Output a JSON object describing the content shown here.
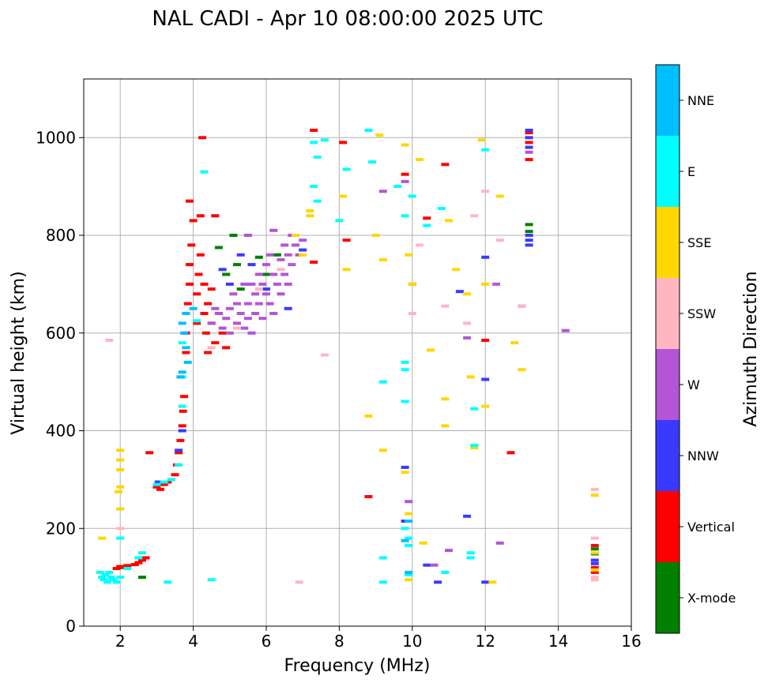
{
  "chart_data": {
    "type": "scatter",
    "title": "NAL CADI - Apr 10 08:00:00 2025 UTC",
    "xlabel": "Frequency (MHz)",
    "ylabel": "Virtual height (km)",
    "xlim": [
      1.0,
      16.0
    ],
    "ylim": [
      0,
      1120
    ],
    "xticks": [
      2,
      4,
      6,
      8,
      10,
      12,
      14,
      16
    ],
    "yticks": [
      0,
      200,
      400,
      600,
      800,
      1000
    ],
    "grid": true,
    "colorbar": {
      "label": "Azimuth Direction",
      "categories": [
        {
          "name": "X-mode",
          "color": "#008000"
        },
        {
          "name": "Vertical",
          "color": "#ff0000"
        },
        {
          "name": "NNW",
          "color": "#3a3aff"
        },
        {
          "name": "W",
          "color": "#b455d6"
        },
        {
          "name": "SSW",
          "color": "#ffb6c1"
        },
        {
          "name": "SSE",
          "color": "#ffd700"
        },
        {
          "name": "E",
          "color": "#00ffff"
        },
        {
          "name": "NNE",
          "color": "#00bfff"
        }
      ]
    },
    "series": [
      {
        "name": "X-mode",
        "points": [
          [
            2.0,
            120
          ],
          [
            2.6,
            100
          ],
          [
            4.7,
            775
          ],
          [
            4.9,
            720
          ],
          [
            5.1,
            800
          ],
          [
            5.2,
            740
          ],
          [
            5.3,
            690
          ],
          [
            5.8,
            755
          ],
          [
            6.0,
            720
          ],
          [
            6.3,
            760
          ],
          [
            13.2,
            822
          ],
          [
            13.2,
            808
          ],
          [
            15.0,
            158
          ],
          [
            15.0,
            148
          ]
        ]
      },
      {
        "name": "Vertical",
        "points": [
          [
            1.9,
            118
          ],
          [
            2.0,
            122
          ],
          [
            2.2,
            124
          ],
          [
            2.4,
            126
          ],
          [
            2.5,
            130
          ],
          [
            2.6,
            135
          ],
          [
            2.7,
            140
          ],
          [
            3.0,
            285
          ],
          [
            3.1,
            280
          ],
          [
            3.2,
            290
          ],
          [
            3.3,
            295
          ],
          [
            3.4,
            300
          ],
          [
            3.5,
            310
          ],
          [
            3.55,
            330
          ],
          [
            3.6,
            355
          ],
          [
            3.65,
            380
          ],
          [
            3.7,
            410
          ],
          [
            3.72,
            440
          ],
          [
            3.75,
            470
          ],
          [
            3.8,
            560
          ],
          [
            3.8,
            600
          ],
          [
            3.8,
            640
          ],
          [
            3.85,
            660
          ],
          [
            3.9,
            700
          ],
          [
            3.9,
            740
          ],
          [
            3.95,
            780
          ],
          [
            4.0,
            830
          ],
          [
            3.9,
            870
          ],
          [
            4.1,
            620
          ],
          [
            4.1,
            680
          ],
          [
            4.15,
            720
          ],
          [
            4.2,
            760
          ],
          [
            4.2,
            840
          ],
          [
            4.25,
            1000
          ],
          [
            4.3,
            640
          ],
          [
            4.3,
            700
          ],
          [
            4.35,
            600
          ],
          [
            4.4,
            660
          ],
          [
            4.4,
            560
          ],
          [
            4.5,
            690
          ],
          [
            4.5,
            620
          ],
          [
            4.6,
            580
          ],
          [
            4.6,
            840
          ],
          [
            4.7,
            640
          ],
          [
            4.8,
            600
          ],
          [
            4.9,
            570
          ],
          [
            2.8,
            355
          ],
          [
            7.3,
            1015
          ],
          [
            7.3,
            745
          ],
          [
            8.1,
            990
          ],
          [
            8.2,
            790
          ],
          [
            9.8,
            925
          ],
          [
            10.0,
            700
          ],
          [
            10.4,
            835
          ],
          [
            10.9,
            945
          ],
          [
            12.0,
            585
          ],
          [
            12.7,
            355
          ],
          [
            13.2,
            1010
          ],
          [
            13.2,
            990
          ],
          [
            13.2,
            955
          ],
          [
            15.0,
            165
          ],
          [
            15.0,
            120
          ],
          [
            15.0,
            110
          ],
          [
            8.8,
            265
          ]
        ]
      },
      {
        "name": "NNW",
        "points": [
          [
            3.05,
            295
          ],
          [
            3.6,
            360
          ],
          [
            3.7,
            400
          ],
          [
            4.8,
            730
          ],
          [
            5.0,
            700
          ],
          [
            5.3,
            760
          ],
          [
            5.6,
            740
          ],
          [
            6.0,
            690
          ],
          [
            6.6,
            650
          ],
          [
            7.0,
            770
          ],
          [
            9.8,
            325
          ],
          [
            9.8,
            215
          ],
          [
            10.4,
            125
          ],
          [
            11.3,
            685
          ],
          [
            11.5,
            225
          ],
          [
            12.0,
            755
          ],
          [
            12.0,
            505
          ],
          [
            12.0,
            90
          ],
          [
            13.2,
            1015
          ],
          [
            13.2,
            1000
          ],
          [
            13.2,
            980
          ],
          [
            13.2,
            800
          ],
          [
            13.2,
            790
          ],
          [
            13.2,
            780
          ],
          [
            15.0,
            135
          ],
          [
            15.0,
            128
          ],
          [
            10.7,
            90
          ]
        ]
      },
      {
        "name": "W",
        "points": [
          [
            4.5,
            620
          ],
          [
            4.6,
            650
          ],
          [
            4.7,
            640
          ],
          [
            4.8,
            610
          ],
          [
            4.9,
            630
          ],
          [
            5.0,
            650
          ],
          [
            5.0,
            600
          ],
          [
            5.1,
            680
          ],
          [
            5.2,
            620
          ],
          [
            5.2,
            660
          ],
          [
            5.3,
            640
          ],
          [
            5.4,
            700
          ],
          [
            5.4,
            610
          ],
          [
            5.5,
            660
          ],
          [
            5.5,
            630
          ],
          [
            5.6,
            700
          ],
          [
            5.6,
            600
          ],
          [
            5.7,
            680
          ],
          [
            5.7,
            640
          ],
          [
            5.8,
            720
          ],
          [
            5.8,
            660
          ],
          [
            5.9,
            700
          ],
          [
            5.9,
            630
          ],
          [
            6.0,
            740
          ],
          [
            6.0,
            680
          ],
          [
            6.1,
            760
          ],
          [
            6.1,
            660
          ],
          [
            6.2,
            720
          ],
          [
            6.2,
            640
          ],
          [
            6.3,
            700
          ],
          [
            6.4,
            750
          ],
          [
            6.4,
            680
          ],
          [
            6.5,
            780
          ],
          [
            6.5,
            720
          ],
          [
            6.6,
            760
          ],
          [
            6.6,
            700
          ],
          [
            6.7,
            800
          ],
          [
            6.7,
            740
          ],
          [
            6.8,
            780
          ],
          [
            6.9,
            760
          ],
          [
            7.0,
            790
          ],
          [
            6.2,
            810
          ],
          [
            5.5,
            800
          ],
          [
            9.2,
            890
          ],
          [
            9.8,
            910
          ],
          [
            9.9,
            255
          ],
          [
            10.6,
            125
          ],
          [
            11.0,
            155
          ],
          [
            11.5,
            590
          ],
          [
            13.0,
            655
          ],
          [
            14.2,
            605
          ],
          [
            12.3,
            700
          ],
          [
            12.4,
            170
          ],
          [
            13.2,
            970
          ]
        ]
      },
      {
        "name": "SSW",
        "points": [
          [
            1.7,
            585
          ],
          [
            4.5,
            570
          ],
          [
            5.2,
            610
          ],
          [
            5.8,
            690
          ],
          [
            6.4,
            730
          ],
          [
            7.6,
            555
          ],
          [
            6.9,
            90
          ],
          [
            10.0,
            640
          ],
          [
            10.2,
            780
          ],
          [
            10.9,
            655
          ],
          [
            11.5,
            620
          ],
          [
            11.7,
            840
          ],
          [
            12.0,
            890
          ],
          [
            12.4,
            790
          ],
          [
            13.0,
            655
          ],
          [
            15.0,
            280
          ],
          [
            15.0,
            180
          ],
          [
            15.0,
            100
          ],
          [
            15.0,
            95
          ],
          [
            2.0,
            200
          ]
        ]
      },
      {
        "name": "SSE",
        "points": [
          [
            2.0,
            360
          ],
          [
            2.0,
            340
          ],
          [
            2.0,
            320
          ],
          [
            2.0,
            285
          ],
          [
            1.95,
            275
          ],
          [
            1.5,
            180
          ],
          [
            2.0,
            240
          ],
          [
            6.8,
            800
          ],
          [
            7.0,
            760
          ],
          [
            7.2,
            850
          ],
          [
            7.2,
            840
          ],
          [
            8.1,
            880
          ],
          [
            8.2,
            730
          ],
          [
            8.8,
            430
          ],
          [
            9.0,
            800
          ],
          [
            9.1,
            1005
          ],
          [
            9.2,
            750
          ],
          [
            9.2,
            360
          ],
          [
            9.8,
            985
          ],
          [
            9.9,
            230
          ],
          [
            9.9,
            760
          ],
          [
            10.0,
            700
          ],
          [
            10.2,
            955
          ],
          [
            10.3,
            170
          ],
          [
            10.9,
            465
          ],
          [
            10.9,
            410
          ],
          [
            10.5,
            565
          ],
          [
            11.0,
            830
          ],
          [
            11.2,
            730
          ],
          [
            11.5,
            680
          ],
          [
            11.6,
            510
          ],
          [
            11.7,
            365
          ],
          [
            11.9,
            995
          ],
          [
            12.0,
            450
          ],
          [
            12.0,
            700
          ],
          [
            12.2,
            90
          ],
          [
            12.4,
            880
          ],
          [
            12.8,
            580
          ],
          [
            13.0,
            525
          ],
          [
            15.0,
            268
          ],
          [
            15.0,
            150
          ],
          [
            15.0,
            115
          ],
          [
            9.9,
            95
          ],
          [
            9.8,
            315
          ]
        ]
      },
      {
        "name": "E",
        "points": [
          [
            1.45,
            110
          ],
          [
            1.5,
            100
          ],
          [
            1.55,
            95
          ],
          [
            1.6,
            105
          ],
          [
            1.65,
            90
          ],
          [
            1.7,
            110
          ],
          [
            1.75,
            100
          ],
          [
            1.8,
            95
          ],
          [
            1.9,
            90
          ],
          [
            2.0,
            100
          ],
          [
            2.0,
            180
          ],
          [
            2.2,
            118
          ],
          [
            2.5,
            140
          ],
          [
            2.6,
            150
          ],
          [
            3.0,
            290
          ],
          [
            3.2,
            295
          ],
          [
            3.3,
            90
          ],
          [
            3.4,
            300
          ],
          [
            3.6,
            330
          ],
          [
            3.7,
            450
          ],
          [
            3.7,
            510
          ],
          [
            3.7,
            580
          ],
          [
            4.1,
            625
          ],
          [
            4.5,
            95
          ],
          [
            4.3,
            930
          ],
          [
            7.3,
            990
          ],
          [
            7.3,
            900
          ],
          [
            7.4,
            960
          ],
          [
            7.4,
            870
          ],
          [
            7.6,
            995
          ],
          [
            8.0,
            830
          ],
          [
            8.2,
            935
          ],
          [
            8.8,
            1015
          ],
          [
            8.9,
            950
          ],
          [
            9.2,
            500
          ],
          [
            9.2,
            140
          ],
          [
            9.2,
            90
          ],
          [
            9.6,
            900
          ],
          [
            9.8,
            460
          ],
          [
            9.8,
            540
          ],
          [
            9.8,
            525
          ],
          [
            9.8,
            200
          ],
          [
            9.9,
            180
          ],
          [
            9.9,
            165
          ],
          [
            9.8,
            840
          ],
          [
            9.9,
            105
          ],
          [
            10.0,
            880
          ],
          [
            10.4,
            820
          ],
          [
            10.8,
            855
          ],
          [
            10.9,
            110
          ],
          [
            11.6,
            150
          ],
          [
            11.6,
            140
          ],
          [
            11.7,
            370
          ],
          [
            11.7,
            445
          ],
          [
            12.0,
            975
          ]
        ]
      },
      {
        "name": "NNE",
        "points": [
          [
            3.7,
            620
          ],
          [
            3.75,
            600
          ],
          [
            3.8,
            570
          ],
          [
            3.85,
            540
          ],
          [
            3.7,
            520
          ],
          [
            3.65,
            510
          ],
          [
            3.8,
            640
          ],
          [
            4.0,
            650
          ],
          [
            9.9,
            110
          ],
          [
            9.8,
            175
          ],
          [
            9.9,
            215
          ]
        ]
      }
    ]
  }
}
